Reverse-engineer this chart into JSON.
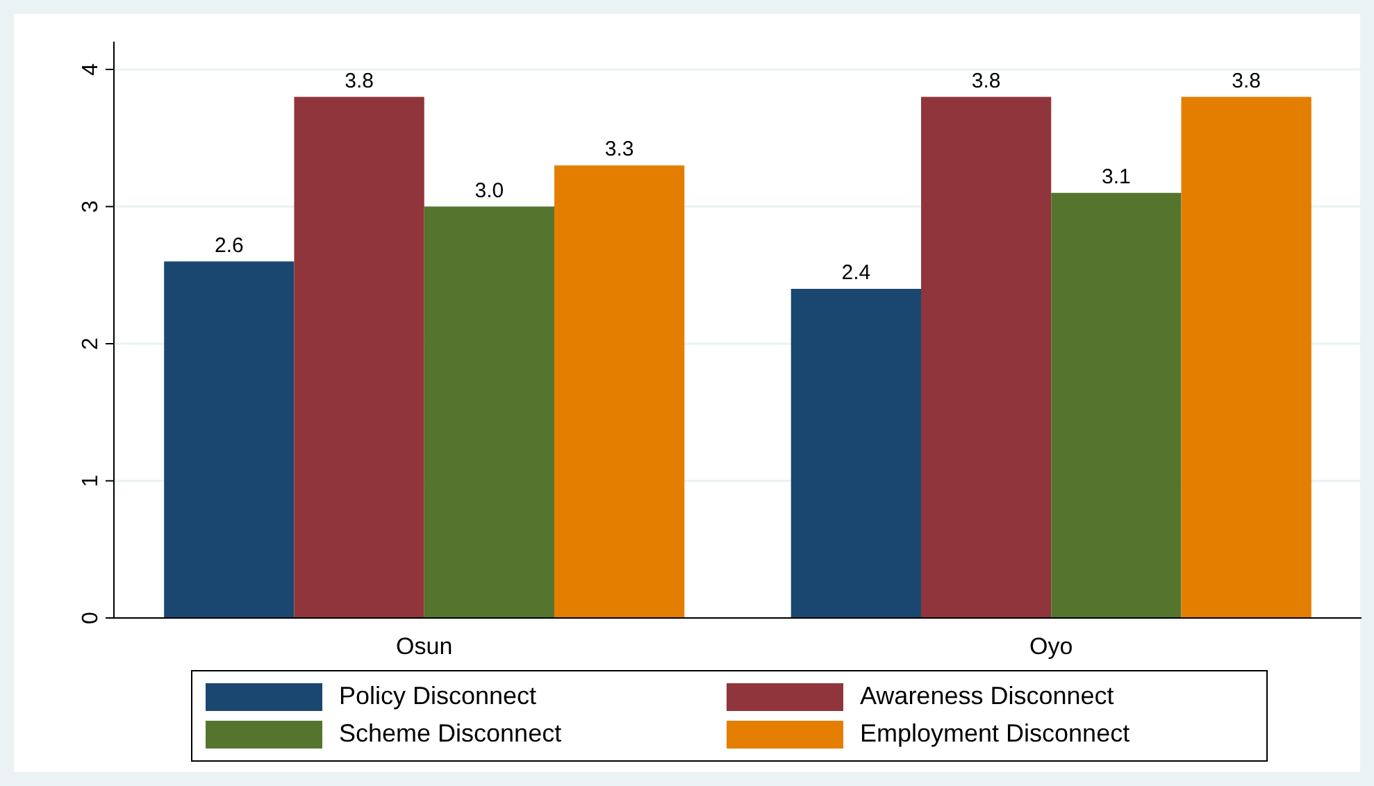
{
  "chart_data": {
    "type": "bar",
    "categories": [
      "Osun",
      "Oyo"
    ],
    "series": [
      {
        "name": "Policy Disconnect",
        "color": "#1a476f",
        "values": [
          2.6,
          2.4
        ],
        "value_labels": [
          "2.6",
          "2.4"
        ]
      },
      {
        "name": "Awareness Disconnect",
        "color": "#90353b",
        "values": [
          3.8,
          3.8
        ],
        "value_labels": [
          "3.8",
          "3.8"
        ]
      },
      {
        "name": "Scheme Disconnect",
        "color": "#55752f",
        "values": [
          3.0,
          3.1
        ],
        "value_labels": [
          "3.0",
          "3.1"
        ]
      },
      {
        "name": "Employment Disconnect",
        "color": "#e37e00",
        "values": [
          3.3,
          3.8
        ],
        "value_labels": [
          "3.3",
          "3.8"
        ]
      }
    ],
    "ylim": [
      0,
      4.0
    ],
    "yticks": [
      0,
      1,
      2,
      3,
      4
    ],
    "grid": "y",
    "legend": "bottom"
  }
}
